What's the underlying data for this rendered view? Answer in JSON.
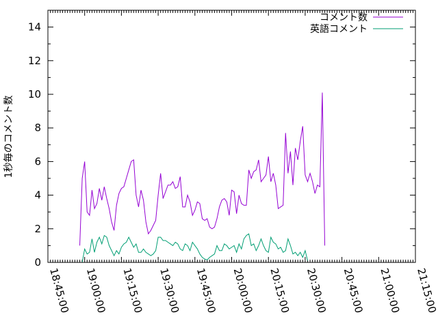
{
  "chart_data": {
    "type": "line",
    "title": "",
    "xlabel": "",
    "ylabel": "1秒毎のコメント数",
    "xlim": [
      "18:45:00",
      "21:15:00"
    ],
    "ylim": [
      0,
      15
    ],
    "x_ticks": [
      "18:45:00",
      "19:00:00",
      "19:15:00",
      "19:30:00",
      "19:45:00",
      "20:00:00",
      "20:15:00",
      "20:30:00",
      "20:45:00",
      "21:00:00",
      "21:15:00"
    ],
    "y_ticks": [
      0,
      2,
      4,
      6,
      8,
      10,
      12,
      14
    ],
    "grid": false,
    "legend_position": "top-right",
    "series": [
      {
        "name": "コメント数",
        "color": "#9400d3",
        "points": [
          [
            "18:58:00",
            1.0
          ],
          [
            "18:59:00",
            5.0
          ],
          [
            "19:00:00",
            6.0
          ],
          [
            "19:01:00",
            3.0
          ],
          [
            "19:02:00",
            2.8
          ],
          [
            "19:03:00",
            4.3
          ],
          [
            "19:04:00",
            3.2
          ],
          [
            "19:05:00",
            3.5
          ],
          [
            "19:06:00",
            4.4
          ],
          [
            "19:07:00",
            3.7
          ],
          [
            "19:08:00",
            4.5
          ],
          [
            "19:09:00",
            3.8
          ],
          [
            "19:10:00",
            3.2
          ],
          [
            "19:11:00",
            2.4
          ],
          [
            "19:12:00",
            1.9
          ],
          [
            "19:13:00",
            3.4
          ],
          [
            "19:14:00",
            4.1
          ],
          [
            "19:15:00",
            4.4
          ],
          [
            "19:16:00",
            4.5
          ],
          [
            "19:17:00",
            5.0
          ],
          [
            "19:18:00",
            5.5
          ],
          [
            "19:19:00",
            6.0
          ],
          [
            "19:20:00",
            6.1
          ],
          [
            "19:21:00",
            4.0
          ],
          [
            "19:22:00",
            3.3
          ],
          [
            "19:23:00",
            4.3
          ],
          [
            "19:24:00",
            3.7
          ],
          [
            "19:25:00",
            2.4
          ],
          [
            "19:26:00",
            1.7
          ],
          [
            "19:27:00",
            1.9
          ],
          [
            "19:28:00",
            2.2
          ],
          [
            "19:29:00",
            2.5
          ],
          [
            "19:30:00",
            4.0
          ],
          [
            "19:31:00",
            5.3
          ],
          [
            "19:32:00",
            3.8
          ],
          [
            "19:33:00",
            4.2
          ],
          [
            "19:34:00",
            4.6
          ],
          [
            "19:35:00",
            4.6
          ],
          [
            "19:36:00",
            4.8
          ],
          [
            "19:37:00",
            4.4
          ],
          [
            "19:38:00",
            4.5
          ],
          [
            "19:39:00",
            5.1
          ],
          [
            "19:40:00",
            3.3
          ],
          [
            "19:41:00",
            3.3
          ],
          [
            "19:42:00",
            4.0
          ],
          [
            "19:43:00",
            3.6
          ],
          [
            "19:44:00",
            2.8
          ],
          [
            "19:45:00",
            3.1
          ],
          [
            "19:46:00",
            3.6
          ],
          [
            "19:47:00",
            3.5
          ],
          [
            "19:48:00",
            2.6
          ],
          [
            "19:49:00",
            2.5
          ],
          [
            "19:50:00",
            2.6
          ],
          [
            "19:51:00",
            2.1
          ],
          [
            "19:52:00",
            2.0
          ],
          [
            "19:53:00",
            2.1
          ],
          [
            "19:54:00",
            2.6
          ],
          [
            "19:55:00",
            3.3
          ],
          [
            "19:56:00",
            3.7
          ],
          [
            "19:57:00",
            3.8
          ],
          [
            "19:58:00",
            3.6
          ],
          [
            "19:59:00",
            2.8
          ],
          [
            "20:00:00",
            4.3
          ],
          [
            "20:01:00",
            4.2
          ],
          [
            "20:02:00",
            2.9
          ],
          [
            "20:03:00",
            4.0
          ],
          [
            "20:04:00",
            3.5
          ],
          [
            "20:05:00",
            3.4
          ],
          [
            "20:06:00",
            3.4
          ],
          [
            "20:07:00",
            5.5
          ],
          [
            "20:08:00",
            5.0
          ],
          [
            "20:09:00",
            5.4
          ],
          [
            "20:10:00",
            5.5
          ],
          [
            "20:11:00",
            6.1
          ],
          [
            "20:12:00",
            4.8
          ],
          [
            "20:13:00",
            5.0
          ],
          [
            "20:14:00",
            5.2
          ],
          [
            "20:15:00",
            6.3
          ],
          [
            "20:16:00",
            4.8
          ],
          [
            "20:17:00",
            5.3
          ],
          [
            "20:18:00",
            4.6
          ],
          [
            "20:19:00",
            3.2
          ],
          [
            "20:20:00",
            3.3
          ],
          [
            "20:21:00",
            3.4
          ],
          [
            "20:22:00",
            7.7
          ],
          [
            "20:23:00",
            5.3
          ],
          [
            "20:24:00",
            6.6
          ],
          [
            "20:25:00",
            4.6
          ],
          [
            "20:26:00",
            6.8
          ],
          [
            "20:27:00",
            6.1
          ],
          [
            "20:28:00",
            7.2
          ],
          [
            "20:29:00",
            8.1
          ],
          [
            "20:30:00",
            5.2
          ],
          [
            "20:31:00",
            4.8
          ],
          [
            "20:32:00",
            5.3
          ],
          [
            "20:33:00",
            4.8
          ],
          [
            "20:34:00",
            4.1
          ],
          [
            "20:35:00",
            4.6
          ],
          [
            "20:36:00",
            4.5
          ],
          [
            "20:37:00",
            10.1
          ],
          [
            "20:38:00",
            1.0
          ]
        ]
      },
      {
        "name": "英語コメント",
        "color": "#009e73",
        "points": [
          [
            "18:59:00",
            0.0
          ],
          [
            "19:00:00",
            0.8
          ],
          [
            "19:01:00",
            0.5
          ],
          [
            "19:02:00",
            0.6
          ],
          [
            "19:03:00",
            1.4
          ],
          [
            "19:04:00",
            0.6
          ],
          [
            "19:05:00",
            1.2
          ],
          [
            "19:06:00",
            1.5
          ],
          [
            "19:07:00",
            1.1
          ],
          [
            "19:08:00",
            1.6
          ],
          [
            "19:09:00",
            1.5
          ],
          [
            "19:10:00",
            1.0
          ],
          [
            "19:11:00",
            0.7
          ],
          [
            "19:12:00",
            0.4
          ],
          [
            "19:13:00",
            0.7
          ],
          [
            "19:14:00",
            0.5
          ],
          [
            "19:15:00",
            0.9
          ],
          [
            "19:16:00",
            1.1
          ],
          [
            "19:17:00",
            1.2
          ],
          [
            "19:18:00",
            1.5
          ],
          [
            "19:19:00",
            1.2
          ],
          [
            "19:20:00",
            0.9
          ],
          [
            "19:21:00",
            1.1
          ],
          [
            "19:22:00",
            0.6
          ],
          [
            "19:23:00",
            0.6
          ],
          [
            "19:24:00",
            0.8
          ],
          [
            "19:25:00",
            0.6
          ],
          [
            "19:26:00",
            0.5
          ],
          [
            "19:27:00",
            0.4
          ],
          [
            "19:28:00",
            0.5
          ],
          [
            "19:29:00",
            0.7
          ],
          [
            "19:30:00",
            1.5
          ],
          [
            "19:31:00",
            1.5
          ],
          [
            "19:32:00",
            1.3
          ],
          [
            "19:33:00",
            1.3
          ],
          [
            "19:34:00",
            1.2
          ],
          [
            "19:35:00",
            1.1
          ],
          [
            "19:36:00",
            1.0
          ],
          [
            "19:37:00",
            1.2
          ],
          [
            "19:38:00",
            1.1
          ],
          [
            "19:39:00",
            0.8
          ],
          [
            "19:40:00",
            0.7
          ],
          [
            "19:41:00",
            1.1
          ],
          [
            "19:42:00",
            1.0
          ],
          [
            "19:43:00",
            0.7
          ],
          [
            "19:44:00",
            1.2
          ],
          [
            "19:45:00",
            1.0
          ],
          [
            "19:46:00",
            0.8
          ],
          [
            "19:47:00",
            0.5
          ],
          [
            "19:48:00",
            0.3
          ],
          [
            "19:49:00",
            0.2
          ],
          [
            "19:50:00",
            0.15
          ],
          [
            "19:51:00",
            0.3
          ],
          [
            "19:52:00",
            0.4
          ],
          [
            "19:53:00",
            0.5
          ],
          [
            "19:54:00",
            1.0
          ],
          [
            "19:55:00",
            0.7
          ],
          [
            "19:56:00",
            0.7
          ],
          [
            "19:57:00",
            1.1
          ],
          [
            "19:58:00",
            1.0
          ],
          [
            "19:59:00",
            0.8
          ],
          [
            "20:00:00",
            0.9
          ],
          [
            "20:01:00",
            1.0
          ],
          [
            "20:02:00",
            0.6
          ],
          [
            "20:03:00",
            1.1
          ],
          [
            "20:04:00",
            0.8
          ],
          [
            "20:05:00",
            1.4
          ],
          [
            "20:06:00",
            1.6
          ],
          [
            "20:07:00",
            1.7
          ],
          [
            "20:08:00",
            1.0
          ],
          [
            "20:09:00",
            1.1
          ],
          [
            "20:10:00",
            0.7
          ],
          [
            "20:11:00",
            1.0
          ],
          [
            "20:12:00",
            1.4
          ],
          [
            "20:13:00",
            1.0
          ],
          [
            "20:14:00",
            0.7
          ],
          [
            "20:15:00",
            0.6
          ],
          [
            "20:16:00",
            1.5
          ],
          [
            "20:17:00",
            1.2
          ],
          [
            "20:18:00",
            1.1
          ],
          [
            "20:19:00",
            0.8
          ],
          [
            "20:20:00",
            0.9
          ],
          [
            "20:21:00",
            0.6
          ],
          [
            "20:22:00",
            0.7
          ],
          [
            "20:23:00",
            1.4
          ],
          [
            "20:24:00",
            1.0
          ],
          [
            "20:25:00",
            0.5
          ],
          [
            "20:26:00",
            0.6
          ],
          [
            "20:27:00",
            0.4
          ],
          [
            "20:28:00",
            0.6
          ],
          [
            "20:29:00",
            0.3
          ],
          [
            "20:30:00",
            0.7
          ],
          [
            "20:31:00",
            0.1
          ]
        ]
      }
    ]
  }
}
